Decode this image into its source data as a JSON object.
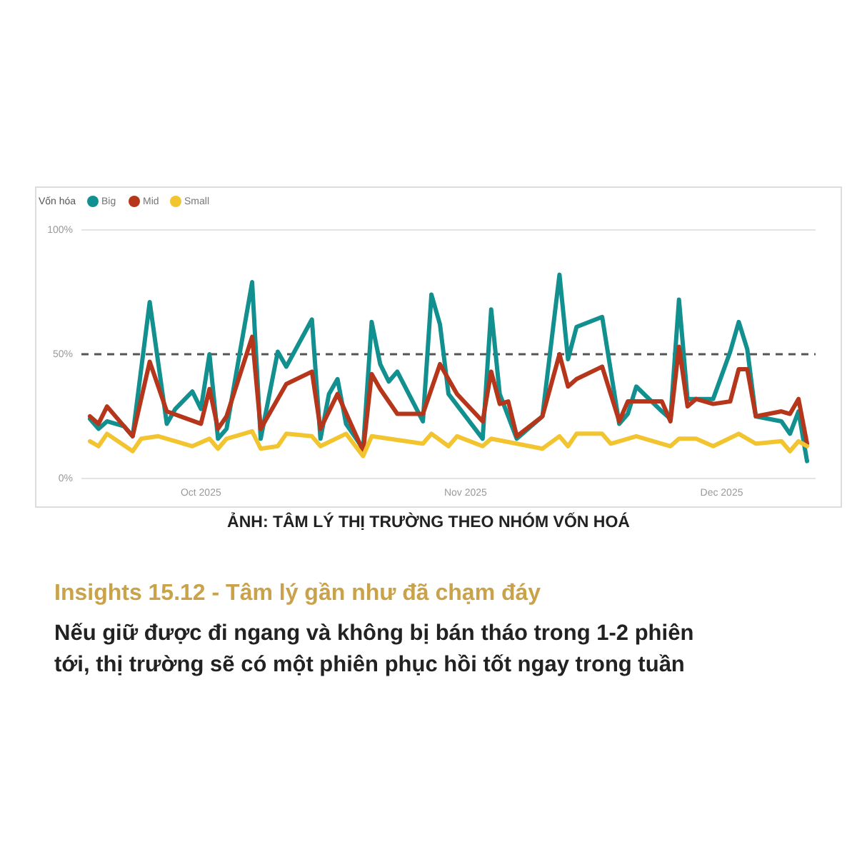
{
  "chart_data": {
    "type": "line",
    "title": "Insights 15.12 - Tâm lý gần như đã chạm đáy",
    "subtitle": "Nếu giữ được đi ngang và không bị bán tháo trong 1-2 phiên tới, thị trường sẽ có một phiên phục hồi tốt ngay trong tuần",
    "annotations": [
      "ẢNH: TÂM LÝ THỊ TRƯỜNG THEO NHÓM VỐN HOÁ"
    ],
    "legend_title": "Vốn hóa",
    "legend": "top left",
    "marker": "none",
    "line_style": "solid",
    "xlim": [
      "2025-09-17",
      "2025-12-12"
    ],
    "xticks": [
      {
        "value": "2025-10-01",
        "label": "Oct 2025"
      },
      {
        "value": "2025-11-01",
        "label": "Nov 2025"
      },
      {
        "value": "2025-12-01",
        "label": "Dec 2025"
      }
    ],
    "ylim": [
      0,
      100
    ],
    "yticks": [
      {
        "value": 0,
        "label": "0%"
      },
      {
        "value": 50,
        "label": "50%"
      },
      {
        "value": 100,
        "label": "100%"
      }
    ],
    "ref_lines": [
      {
        "axis": "y",
        "value": 50,
        "label": null,
        "color": "#555555",
        "line_style": "dashed"
      }
    ],
    "series": [
      {
        "name": "Big",
        "color": "#11908f",
        "x": [
          "2025-09-18",
          "2025-09-19",
          "2025-09-20",
          "2025-09-22",
          "2025-09-23",
          "2025-09-25",
          "2025-09-27",
          "2025-09-28",
          "2025-09-30",
          "2025-10-01",
          "2025-10-02",
          "2025-10-03",
          "2025-10-04",
          "2025-10-07",
          "2025-10-08",
          "2025-10-10",
          "2025-10-11",
          "2025-10-14",
          "2025-10-15",
          "2025-10-16",
          "2025-10-17",
          "2025-10-18",
          "2025-10-20",
          "2025-10-21",
          "2025-10-22",
          "2025-10-23",
          "2025-10-24",
          "2025-10-27",
          "2025-10-28",
          "2025-10-29",
          "2025-10-30",
          "2025-11-03",
          "2025-11-04",
          "2025-11-05",
          "2025-11-07",
          "2025-11-10",
          "2025-11-12",
          "2025-11-13",
          "2025-11-14",
          "2025-11-17",
          "2025-11-19",
          "2025-11-20",
          "2025-11-21",
          "2025-11-24",
          "2025-11-25",
          "2025-11-26",
          "2025-11-27",
          "2025-11-30",
          "2025-12-02",
          "2025-12-03",
          "2025-12-04",
          "2025-12-05",
          "2025-12-08",
          "2025-12-09",
          "2025-12-10",
          "2025-12-11"
        ],
        "values": [
          24,
          20,
          23,
          21,
          17,
          71,
          22,
          28,
          35,
          28,
          50,
          16,
          20,
          79,
          16,
          51,
          45,
          64,
          16,
          34,
          40,
          22,
          12,
          63,
          46,
          39,
          43,
          23,
          74,
          62,
          34,
          16,
          68,
          34,
          16,
          25,
          82,
          48,
          61,
          65,
          22,
          26,
          37,
          27,
          24,
          72,
          32,
          32,
          51,
          63,
          52,
          25,
          23,
          18,
          27,
          7
        ]
      },
      {
        "name": "Mid",
        "color": "#b5361b",
        "x": [
          "2025-09-18",
          "2025-09-19",
          "2025-09-20",
          "2025-09-23",
          "2025-09-25",
          "2025-09-27",
          "2025-10-01",
          "2025-10-02",
          "2025-10-03",
          "2025-10-04",
          "2025-10-07",
          "2025-10-08",
          "2025-10-11",
          "2025-10-14",
          "2025-10-15",
          "2025-10-17",
          "2025-10-20",
          "2025-10-21",
          "2025-10-22",
          "2025-10-24",
          "2025-10-27",
          "2025-10-29",
          "2025-10-31",
          "2025-11-03",
          "2025-11-04",
          "2025-11-05",
          "2025-11-06",
          "2025-11-07",
          "2025-11-10",
          "2025-11-12",
          "2025-11-13",
          "2025-11-14",
          "2025-11-17",
          "2025-11-19",
          "2025-11-20",
          "2025-11-24",
          "2025-11-25",
          "2025-11-26",
          "2025-11-27",
          "2025-11-28",
          "2025-11-30",
          "2025-12-02",
          "2025-12-03",
          "2025-12-04",
          "2025-12-05",
          "2025-12-08",
          "2025-12-09",
          "2025-12-10",
          "2025-12-11"
        ],
        "values": [
          25,
          22,
          29,
          17,
          47,
          27,
          22,
          36,
          20,
          25,
          57,
          20,
          38,
          43,
          20,
          34,
          11,
          42,
          36,
          26,
          26,
          46,
          34,
          23,
          43,
          30,
          31,
          17,
          25,
          50,
          37,
          40,
          45,
          23,
          31,
          31,
          23,
          53,
          29,
          32,
          30,
          31,
          44,
          44,
          25,
          27,
          26,
          32,
          14
        ]
      },
      {
        "name": "Small",
        "color": "#f2c530",
        "x": [
          "2025-09-18",
          "2025-09-19",
          "2025-09-20",
          "2025-09-23",
          "2025-09-24",
          "2025-09-26",
          "2025-09-30",
          "2025-10-02",
          "2025-10-03",
          "2025-10-04",
          "2025-10-07",
          "2025-10-08",
          "2025-10-10",
          "2025-10-11",
          "2025-10-14",
          "2025-10-15",
          "2025-10-18",
          "2025-10-20",
          "2025-10-21",
          "2025-10-27",
          "2025-10-28",
          "2025-10-30",
          "2025-10-31",
          "2025-11-03",
          "2025-11-04",
          "2025-11-07",
          "2025-11-10",
          "2025-11-12",
          "2025-11-13",
          "2025-11-14",
          "2025-11-17",
          "2025-11-18",
          "2025-11-21",
          "2025-11-25",
          "2025-11-26",
          "2025-11-28",
          "2025-11-30",
          "2025-12-03",
          "2025-12-05",
          "2025-12-08",
          "2025-12-09",
          "2025-12-10",
          "2025-12-11"
        ],
        "values": [
          15,
          13,
          18,
          11,
          16,
          17,
          13,
          16,
          12,
          16,
          19,
          12,
          13,
          18,
          17,
          13,
          18,
          9,
          17,
          14,
          18,
          13,
          17,
          13,
          16,
          14,
          12,
          17,
          13,
          18,
          18,
          14,
          17,
          13,
          16,
          16,
          13,
          18,
          14,
          15,
          11,
          15,
          13
        ]
      }
    ]
  }
}
